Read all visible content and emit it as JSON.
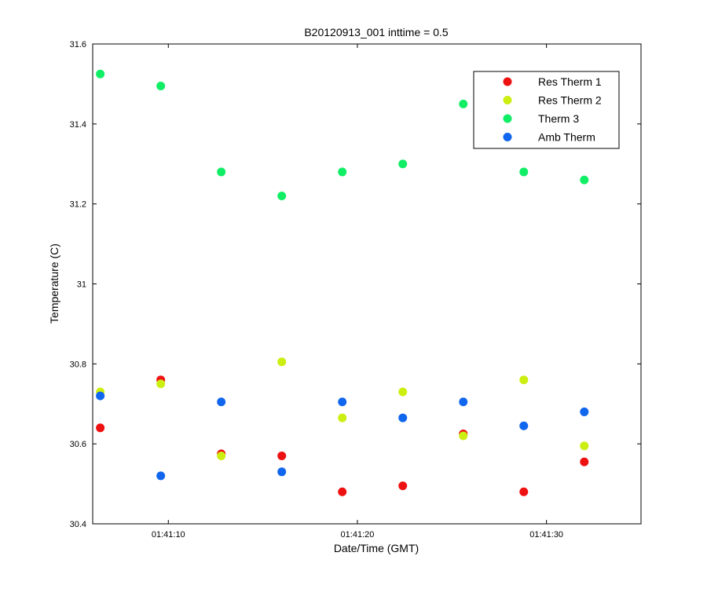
{
  "chart_data": {
    "type": "scatter",
    "title": "B20120913_001 inttime = 0.5",
    "xlabel": "Date/Time (GMT)",
    "ylabel": "Temperature (C)",
    "x_unit": "time (HH:MM:SS, GMT)",
    "xlim": [
      "01:41:06.0",
      "01:41:35.0"
    ],
    "ylim": [
      30.4,
      31.6
    ],
    "xticks": [
      {
        "value": "01:41:10",
        "label": "01:41:10"
      },
      {
        "value": "01:41:20",
        "label": "01:41:20"
      },
      {
        "value": "01:41:30",
        "label": "01:41:30"
      }
    ],
    "yticks": [
      {
        "value": 30.4,
        "label": "30.4"
      },
      {
        "value": 30.6,
        "label": "30.6"
      },
      {
        "value": 30.8,
        "label": "30.8"
      },
      {
        "value": 31.0,
        "label": "31"
      },
      {
        "value": 31.2,
        "label": "31.2"
      },
      {
        "value": 31.4,
        "label": "31.4"
      },
      {
        "value": 31.6,
        "label": "31.6"
      }
    ],
    "grid": false,
    "legend": {
      "position": "top-right"
    },
    "x": [
      "01:41:06.4",
      "01:41:09.6",
      "01:41:12.8",
      "01:41:16.0",
      "01:41:19.2",
      "01:41:22.4",
      "01:41:25.6",
      "01:41:28.8",
      "01:41:32.0"
    ],
    "series": [
      {
        "name": "Res Therm 1",
        "color": "#ee1111",
        "values": [
          30.64,
          30.76,
          30.575,
          30.57,
          30.48,
          30.495,
          30.625,
          30.48,
          30.555
        ]
      },
      {
        "name": "Res Therm 2",
        "color": "#ccee11",
        "values": [
          30.73,
          30.75,
          30.57,
          30.805,
          30.665,
          30.73,
          30.62,
          30.76,
          30.595
        ]
      },
      {
        "name": "Therm 3",
        "color": "#11ee66",
        "values": [
          31.525,
          31.495,
          31.28,
          31.22,
          31.28,
          31.3,
          31.45,
          31.28,
          31.26
        ]
      },
      {
        "name": "Amb Therm",
        "color": "#1166ee",
        "values": [
          30.72,
          30.52,
          30.705,
          30.53,
          30.705,
          30.665,
          30.705,
          30.645,
          30.68
        ]
      }
    ]
  }
}
